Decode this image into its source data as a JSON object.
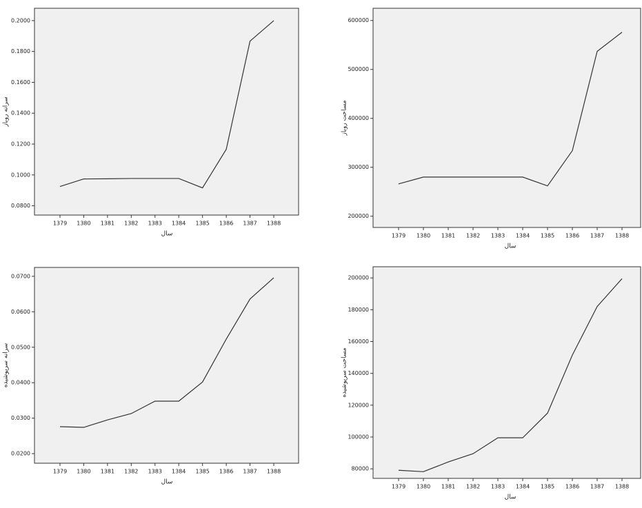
{
  "chart_data": [
    {
      "type": "line",
      "ylabel": "سرانه روباز",
      "xlabel": "سال",
      "color": "#333333",
      "categories": [
        "1379",
        "1380",
        "1381",
        "1382",
        "1383",
        "1384",
        "1385",
        "1386",
        "1387",
        "1388"
      ],
      "values": [
        0.0925,
        0.0974,
        0.0975,
        0.0977,
        0.0977,
        0.0977,
        0.0916,
        0.1166,
        0.1867,
        0.2
      ],
      "ylim": [
        0.074,
        0.208
      ],
      "yticks": [
        {
          "value": 0.08,
          "label": "0.0800"
        },
        {
          "value": 0.1,
          "label": "0.1000"
        },
        {
          "value": 0.12,
          "label": "0.1200"
        },
        {
          "value": 0.14,
          "label": "0.1400"
        },
        {
          "value": 0.16,
          "label": "0.1600"
        },
        {
          "value": 0.18,
          "label": "0.1800"
        },
        {
          "value": 0.2,
          "label": "0.2000"
        }
      ]
    },
    {
      "type": "line",
      "ylabel": "مساحت روباز",
      "xlabel": "سال",
      "color": "#333333",
      "categories": [
        "1379",
        "1380",
        "1381",
        "1382",
        "1383",
        "1384",
        "1385",
        "1386",
        "1387",
        "1388"
      ],
      "values": [
        266000,
        280000,
        280000,
        280000,
        280000,
        280000,
        262000,
        334000,
        537000,
        576000
      ],
      "ylim": [
        177000,
        625000
      ],
      "yticks": [
        200000,
        300000,
        400000,
        500000,
        600000
      ]
    },
    {
      "type": "line",
      "ylabel": "سرانه سرپوشیده",
      "xlabel": "سال",
      "color": "#333333",
      "categories": [
        "1379",
        "1380",
        "1381",
        "1382",
        "1383",
        "1384",
        "1385",
        "1386",
        "1387",
        "1388"
      ],
      "values": [
        0.0276,
        0.0274,
        0.0295,
        0.0313,
        0.0348,
        0.0348,
        0.0402,
        0.0523,
        0.0636,
        0.0696
      ],
      "ylim": [
        0.0173,
        0.0725
      ],
      "yticks": [
        {
          "value": 0.02,
          "label": "0.0200"
        },
        {
          "value": 0.03,
          "label": "0.0300"
        },
        {
          "value": 0.04,
          "label": "0.0400"
        },
        {
          "value": 0.05,
          "label": "0.0500"
        },
        {
          "value": 0.06,
          "label": "0.0600"
        },
        {
          "value": 0.07,
          "label": "0.0700"
        }
      ]
    },
    {
      "type": "line",
      "ylabel": "مساحت سرپوشیده",
      "xlabel": "سال",
      "color": "#333333",
      "categories": [
        "1379",
        "1380",
        "1381",
        "1382",
        "1383",
        "1384",
        "1385",
        "1386",
        "1387",
        "1388"
      ],
      "values": [
        79100,
        78200,
        84300,
        89500,
        99500,
        99500,
        115000,
        151500,
        182000,
        199500
      ],
      "ylim": [
        74000,
        207000
      ],
      "yticks": [
        80000,
        100000,
        120000,
        140000,
        160000,
        180000,
        200000
      ]
    }
  ]
}
